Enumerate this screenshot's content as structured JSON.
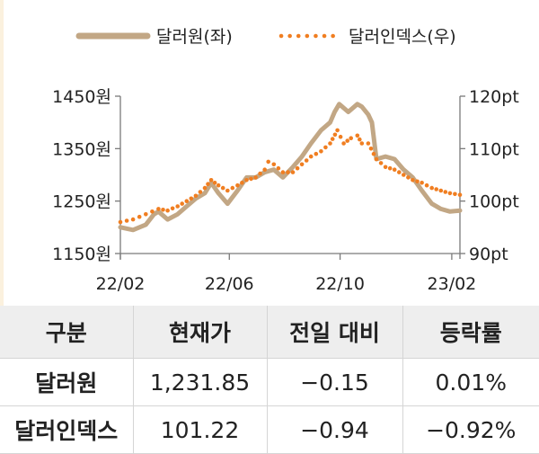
{
  "colors": {
    "krw_line": "#c2a785",
    "dxy_dots": "#f07e21",
    "axis": "#7a7a7a",
    "header_bg": "#eeeeee"
  },
  "chart_data": {
    "type": "line",
    "x_ticks": [
      "22/02",
      "22/06",
      "22/10",
      "23/02"
    ],
    "y_left": {
      "ticks": [
        "1450원",
        "1350원",
        "1250원",
        "1150원"
      ],
      "values": [
        1450,
        1350,
        1250,
        1150
      ],
      "ylim": [
        1150,
        1450
      ]
    },
    "y_right": {
      "ticks": [
        "120pt",
        "110pt",
        "100pt",
        "90pt"
      ],
      "values": [
        120,
        110,
        100,
        90
      ],
      "ylim": [
        90,
        120
      ]
    },
    "xlim": [
      "2022-02-01",
      "2023-02-10"
    ],
    "legend_position": "top",
    "series": [
      {
        "name": "달러원(좌)",
        "axis": "left",
        "style": "solid",
        "x": [
          "2022-02-01",
          "2022-02-15",
          "2022-03-01",
          "2022-03-10",
          "2022-03-15",
          "2022-03-25",
          "2022-04-05",
          "2022-04-15",
          "2022-04-25",
          "2022-05-05",
          "2022-05-12",
          "2022-05-20",
          "2022-05-30",
          "2022-06-10",
          "2022-06-20",
          "2022-06-30",
          "2022-07-10",
          "2022-07-20",
          "2022-07-30",
          "2022-08-10",
          "2022-08-20",
          "2022-08-30",
          "2022-09-10",
          "2022-09-20",
          "2022-09-25",
          "2022-09-30",
          "2022-10-10",
          "2022-10-20",
          "2022-10-25",
          "2022-11-01",
          "2022-11-05",
          "2022-11-10",
          "2022-11-20",
          "2022-11-30",
          "2022-12-10",
          "2022-12-20",
          "2022-12-30",
          "2023-01-10",
          "2023-01-20",
          "2023-01-30",
          "2023-02-10"
        ],
        "y": [
          1200,
          1195,
          1205,
          1225,
          1230,
          1215,
          1225,
          1240,
          1255,
          1265,
          1285,
          1265,
          1245,
          1270,
          1295,
          1295,
          1305,
          1310,
          1295,
          1315,
          1335,
          1360,
          1385,
          1400,
          1420,
          1435,
          1420,
          1435,
          1430,
          1415,
          1400,
          1330,
          1335,
          1330,
          1310,
          1295,
          1270,
          1245,
          1235,
          1230,
          1232
        ]
      },
      {
        "name": "달러인덱스(우)",
        "axis": "right",
        "style": "dotted",
        "x": [
          "2022-02-01",
          "2022-02-15",
          "2022-03-01",
          "2022-03-15",
          "2022-03-25",
          "2022-04-05",
          "2022-04-15",
          "2022-04-25",
          "2022-05-05",
          "2022-05-12",
          "2022-05-20",
          "2022-05-30",
          "2022-06-10",
          "2022-06-20",
          "2022-06-30",
          "2022-07-10",
          "2022-07-14",
          "2022-07-20",
          "2022-07-30",
          "2022-08-10",
          "2022-08-20",
          "2022-08-30",
          "2022-09-10",
          "2022-09-20",
          "2022-09-28",
          "2022-10-05",
          "2022-10-13",
          "2022-10-20",
          "2022-10-25",
          "2022-11-01",
          "2022-11-10",
          "2022-11-20",
          "2022-11-30",
          "2022-12-10",
          "2022-12-20",
          "2022-12-30",
          "2023-01-10",
          "2023-01-20",
          "2023-01-30",
          "2023-02-10"
        ],
        "y": [
          96,
          96.5,
          97.5,
          98.5,
          98.2,
          99,
          100,
          101,
          102.5,
          104,
          103,
          102,
          103,
          104,
          104.5,
          106,
          107.5,
          107,
          105.5,
          105.5,
          107,
          108.5,
          109.5,
          111,
          113.5,
          111,
          112,
          112.5,
          111,
          111,
          108,
          106.5,
          106,
          105,
          104,
          103.5,
          102.5,
          102,
          101.5,
          101.2
        ]
      }
    ]
  },
  "table": {
    "headers": [
      "구분",
      "현재가",
      "전일 대비",
      "등락률"
    ],
    "rows": [
      {
        "name": "달러원",
        "price": "1,231.85",
        "change": "−0.15",
        "rate": "0.01%"
      },
      {
        "name": "달러인덱스",
        "price": "101.22",
        "change": "−0.94",
        "rate": "−0.92%"
      }
    ]
  }
}
